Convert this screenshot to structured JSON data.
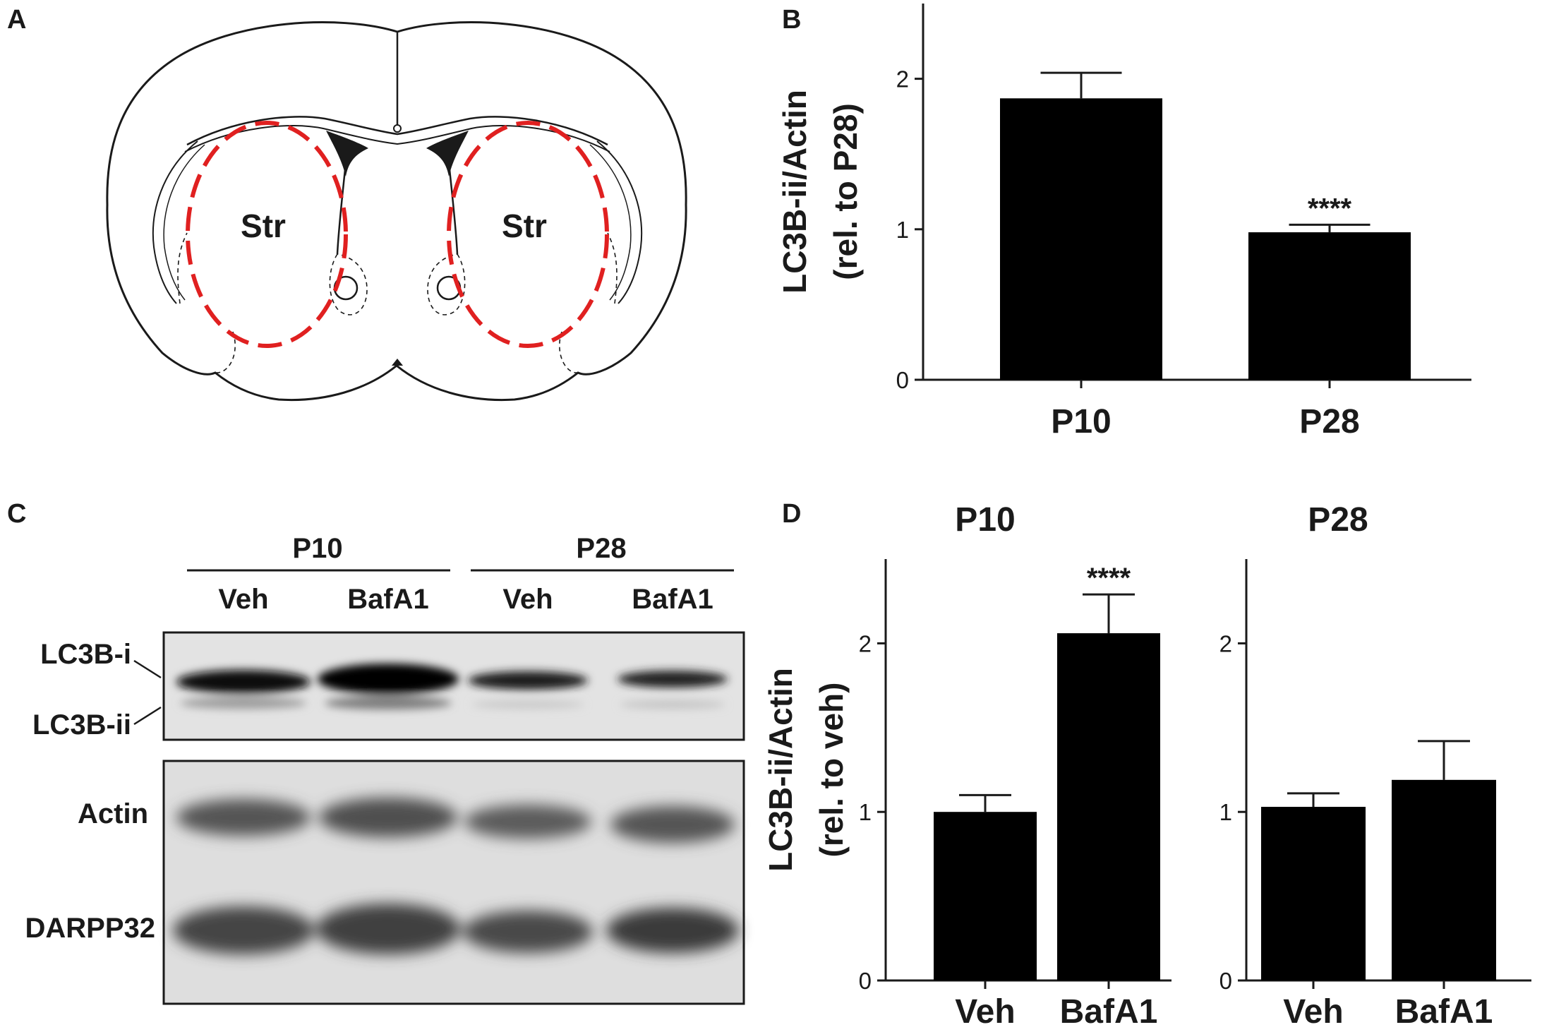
{
  "panels": {
    "A": {
      "letter": "A",
      "region_label_left": "Str",
      "region_label_right": "Str",
      "outline_color": "#e02020"
    },
    "B": {
      "letter": "B"
    },
    "C": {
      "letter": "C",
      "groups": [
        "P10",
        "P28"
      ],
      "lanes": [
        "Veh",
        "BafA1",
        "Veh",
        "BafA1"
      ],
      "band_labels": [
        "LC3B-i",
        "LC3B-ii",
        "Actin",
        "DARPP32"
      ]
    },
    "D": {
      "letter": "D"
    }
  },
  "chart_data": [
    {
      "panel": "B",
      "type": "bar",
      "categories": [
        "P10",
        "P28"
      ],
      "values": [
        1.87,
        0.98
      ],
      "errors": [
        0.17,
        0.05
      ],
      "significance": [
        "",
        "****"
      ],
      "ylabel_line1": "LC3B-ii/Actin",
      "ylabel_line2": "(rel. to P28)",
      "ylim": [
        0,
        2.5
      ],
      "yticks": [
        0,
        1,
        2
      ],
      "bar_color": "#000000"
    },
    {
      "panel": "D",
      "type": "bar",
      "title": "P10",
      "categories": [
        "Veh",
        "BafA1"
      ],
      "values": [
        1.0,
        2.06
      ],
      "errors": [
        0.1,
        0.23
      ],
      "significance": [
        "",
        "****"
      ],
      "ylabel_line1": "LC3B-ii/Actin",
      "ylabel_line2": "(rel. to veh)",
      "ylim": [
        0,
        2.5
      ],
      "yticks": [
        0,
        1,
        2
      ],
      "bar_color": "#000000"
    },
    {
      "panel": "D",
      "type": "bar",
      "title": "P28",
      "categories": [
        "Veh",
        "BafA1"
      ],
      "values": [
        1.03,
        1.19
      ],
      "errors": [
        0.08,
        0.23
      ],
      "significance": [
        "",
        ""
      ],
      "ylim": [
        0,
        2.5
      ],
      "yticks": [
        0,
        1,
        2
      ],
      "bar_color": "#000000"
    }
  ]
}
